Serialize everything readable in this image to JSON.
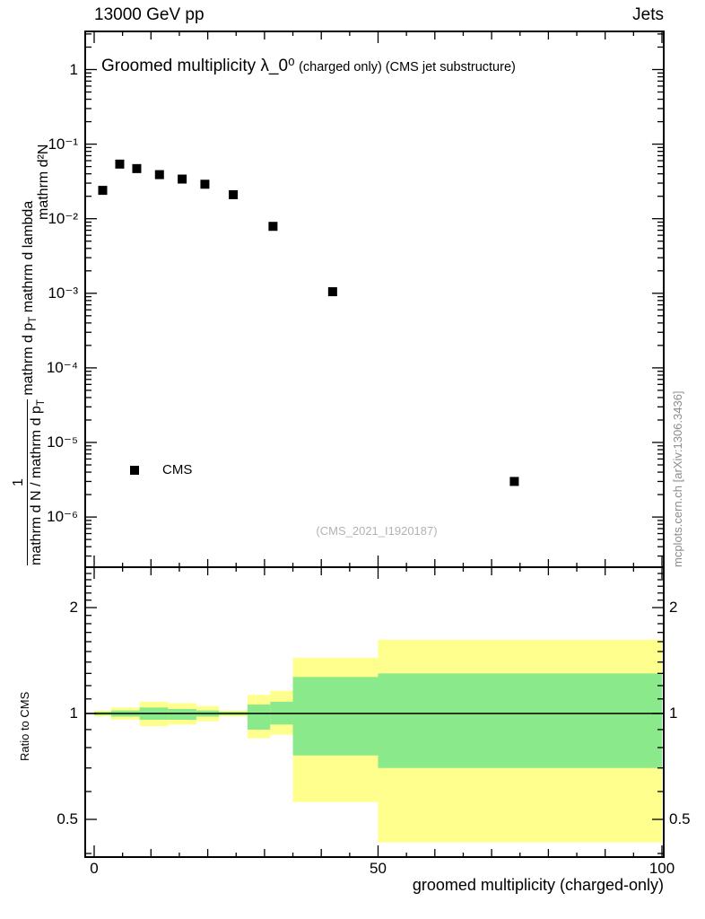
{
  "header": {
    "left": "13000 GeV pp",
    "right": "Jets"
  },
  "title": {
    "main": "Groomed multiplicity λ_0⁰",
    "sub": "(charged only) (CMS jet substructure)"
  },
  "legend": {
    "label": "CMS"
  },
  "ref_label": "(CMS_2021_I1920187)",
  "watermark": "mcplots.cern.ch [arXiv:1306.3436]",
  "axes": {
    "xlabel": "groomed multiplicity (charged-only)",
    "ylabel_frac1_num": "1",
    "ylabel_frac1_den": "mathrm d N / mathrm d p_T",
    "ylabel_tail": "mathrm d p_T mathrm d lambda",
    "ylabel_d2n": "mathrm d²N",
    "ratio_ylabel": "Ratio to CMS",
    "x_ticks": [
      {
        "value": 0,
        "label": "0"
      },
      {
        "value": 50,
        "label": "50"
      },
      {
        "value": 100,
        "label": "100"
      }
    ],
    "main_y_ticks": [
      {
        "exp": 0,
        "label": "1"
      },
      {
        "exp": -1,
        "label": "10⁻¹"
      },
      {
        "exp": -2,
        "label": "10⁻²"
      },
      {
        "exp": -3,
        "label": "10⁻³"
      },
      {
        "exp": -4,
        "label": "10⁻⁴"
      },
      {
        "exp": -5,
        "label": "10⁻⁵"
      },
      {
        "exp": -6,
        "label": "10⁻⁶"
      }
    ],
    "ratio_y_ticks": [
      {
        "value": 2,
        "label": "2"
      },
      {
        "value": 1,
        "label": "1"
      },
      {
        "value": 0.5,
        "label": "0.5"
      }
    ]
  },
  "colors": {
    "frame": "#000000",
    "marker": "#000000",
    "band_outer": "#ffff8e",
    "band_inner": "#8ae98a",
    "ref_text": "#b3b3b3",
    "watermark_text": "#8c8c8c"
  },
  "chart_data": [
    {
      "type": "scatter",
      "name": "main-distribution",
      "title": "Groomed multiplicity λ_0⁰ (charged only) (CMS jet substructure)",
      "xlabel": "groomed multiplicity (charged-only)",
      "ylabel": "1/(dN/dp_T) d²N/(dp_T dlambda)",
      "xlim": [
        0,
        100
      ],
      "ylim": [
        2e-07,
        3
      ],
      "yscale": "log",
      "legend_position": "inside-left-lower",
      "series": [
        {
          "name": "CMS",
          "marker": "filled-square",
          "color": "#000000",
          "points": [
            [
              1.5,
              0.024
            ],
            [
              4.5,
              0.054
            ],
            [
              7.5,
              0.047
            ],
            [
              11.5,
              0.039
            ],
            [
              15.5,
              0.034
            ],
            [
              19.5,
              0.029
            ],
            [
              24.5,
              0.021
            ],
            [
              31.5,
              0.0079
            ],
            [
              42,
              0.00105
            ],
            [
              74,
              3e-06
            ]
          ]
        }
      ]
    },
    {
      "type": "area",
      "name": "ratio-panel",
      "ylabel": "Ratio to CMS",
      "xlim": [
        0,
        100
      ],
      "ylim": [
        0.39,
        2.6
      ],
      "yscale": "log",
      "reference_line": 1,
      "bands": [
        {
          "x": [
            0,
            3
          ],
          "outer": [
            0.98,
            1.02
          ],
          "inner": [
            0.99,
            1.01
          ]
        },
        {
          "x": [
            3,
            8
          ],
          "outer": [
            0.96,
            1.04
          ],
          "inner": [
            0.98,
            1.02
          ]
        },
        {
          "x": [
            8,
            13
          ],
          "outer": [
            0.92,
            1.08
          ],
          "inner": [
            0.96,
            1.04
          ]
        },
        {
          "x": [
            13,
            18
          ],
          "outer": [
            0.93,
            1.07
          ],
          "inner": [
            0.96,
            1.03
          ]
        },
        {
          "x": [
            18,
            22
          ],
          "outer": [
            0.95,
            1.05
          ],
          "inner": [
            0.98,
            1.02
          ]
        },
        {
          "x": [
            22,
            27
          ],
          "outer": [
            0.98,
            1.02
          ],
          "inner": [
            0.99,
            1.01
          ]
        },
        {
          "x": [
            27,
            31
          ],
          "outer": [
            0.85,
            1.13
          ],
          "inner": [
            0.9,
            1.06
          ]
        },
        {
          "x": [
            31,
            35
          ],
          "outer": [
            0.87,
            1.16
          ],
          "inner": [
            0.93,
            1.08
          ]
        },
        {
          "x": [
            35,
            50
          ],
          "outer": [
            0.56,
            1.44
          ],
          "inner": [
            0.76,
            1.27
          ]
        },
        {
          "x": [
            50,
            100
          ],
          "outer": [
            0.43,
            1.62
          ],
          "inner": [
            0.7,
            1.3
          ]
        }
      ]
    }
  ]
}
